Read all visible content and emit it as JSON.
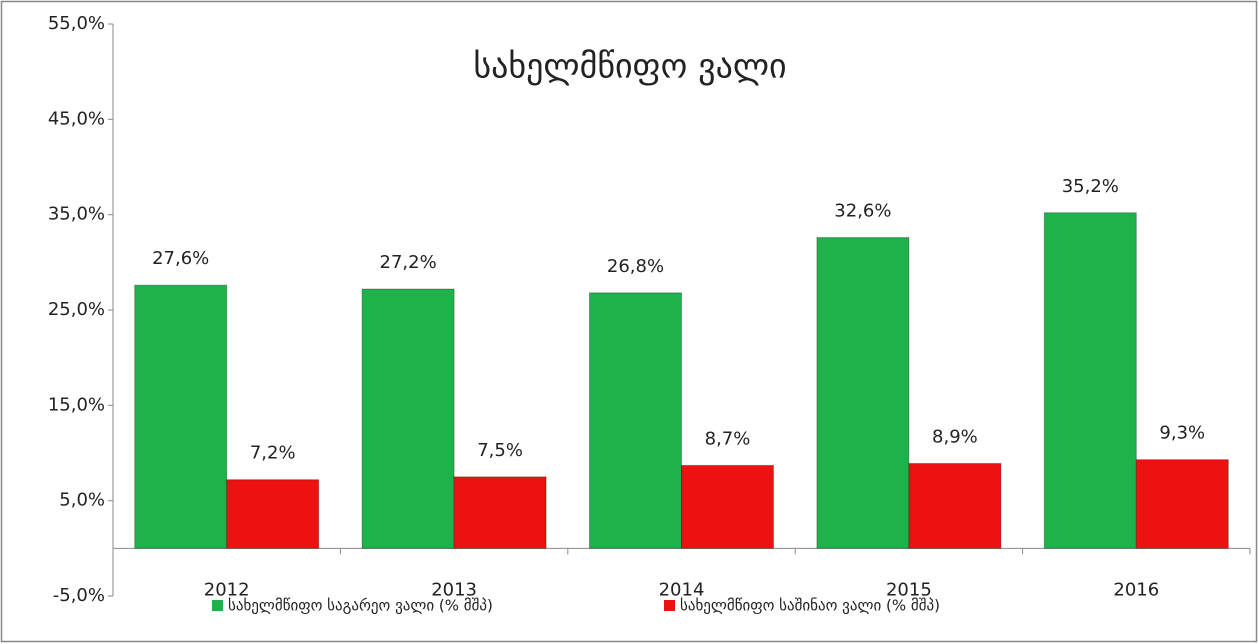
{
  "chart_data": {
    "type": "bar",
    "title": "სახელმწიფო ვალი",
    "categories": [
      "2012",
      "2013",
      "2014",
      "2015",
      "2016"
    ],
    "series": [
      {
        "name": "სახელმწიფო საგარეო ვალი (% მშპ)",
        "color": "#1fb24a",
        "values": [
          27.6,
          27.2,
          26.8,
          32.6,
          35.2
        ],
        "value_labels": [
          "27,6%",
          "27,2%",
          "26,8%",
          "32,6%",
          "35,2%"
        ]
      },
      {
        "name": "სახელმწიფო საშინაო ვალი (% მშპ)",
        "color": "#ee1111",
        "values": [
          7.2,
          7.5,
          8.7,
          8.9,
          9.3
        ],
        "value_labels": [
          "7,2%",
          "7,5%",
          "8,7%",
          "8,9%",
          "9,3%"
        ]
      }
    ],
    "ylim": [
      -5,
      55
    ],
    "yticks": [
      {
        "value": -5,
        "label": "-5,0%"
      },
      {
        "value": 5,
        "label": "5,0%"
      },
      {
        "value": 15,
        "label": "15,0%"
      },
      {
        "value": 25,
        "label": "25,0%"
      },
      {
        "value": 35,
        "label": "35,0%"
      },
      {
        "value": 45,
        "label": "45,0%"
      },
      {
        "value": 55,
        "label": "55,0%"
      }
    ],
    "grid": false,
    "legend": "bottom"
  }
}
